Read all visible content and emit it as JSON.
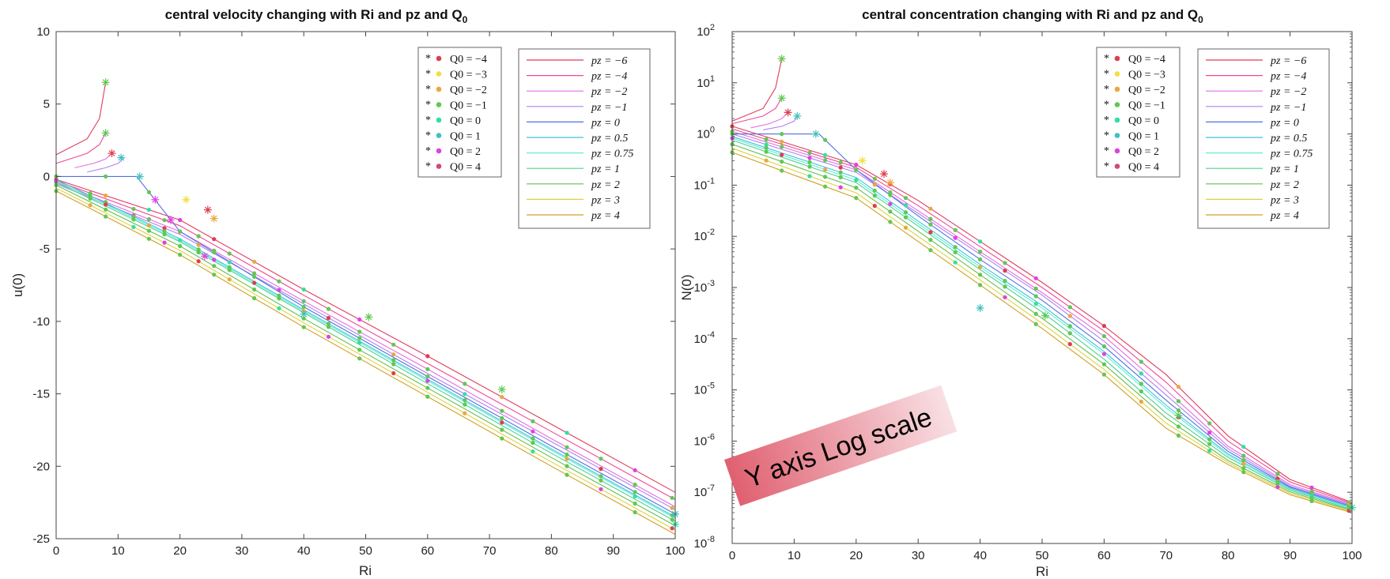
{
  "colors": {
    "q_colors": [
      "#e03c4e",
      "#f0e040",
      "#e8a840",
      "#60c850",
      "#30e0a0",
      "#40c0c0",
      "#e040e0",
      "#d04880"
    ],
    "p_colors": [
      "#e03c5a",
      "#f04896",
      "#e070e0",
      "#b080f0",
      "#5070e0",
      "#40c0e0",
      "#60f0d0",
      "#50d090",
      "#60c050",
      "#e0d040",
      "#d0a020"
    ],
    "marker_color": "#60c850",
    "annotation_gradient": [
      "#e06070",
      "#f8e0e4"
    ]
  },
  "annotation": {
    "text": "Y axis Log scale"
  },
  "chart_data": [
    {
      "type": "line",
      "title": "central velocity changing with Ri and pz and Q",
      "title_sub": "0",
      "xlabel": "Ri",
      "ylabel": "u(0)",
      "xlim": [
        0,
        100
      ],
      "ylim": [
        -25,
        10
      ],
      "yscale": "linear",
      "xticks": [
        0,
        10,
        20,
        30,
        40,
        50,
        60,
        70,
        80,
        90,
        100
      ],
      "yticks": [
        10,
        5,
        0,
        -5,
        -10,
        -15,
        -20,
        -25
      ],
      "grid": false,
      "legend_q": [
        "Q0 = −4",
        "Q0 = −3",
        "Q0 = −2",
        "Q0 = −1",
        "Q0 = 0",
        "Q0 = 1",
        "Q0 = 2",
        "Q0 = 4"
      ],
      "legend_p": [
        "pz = −6",
        "pz = −4",
        "pz = −2",
        "pz = −1",
        "pz = 0",
        "pz = 0.5",
        "pz = 0.75",
        "pz = 1",
        "pz = 2",
        "pz = 3",
        "pz = 4"
      ],
      "legend_placement": "top-right",
      "series": [
        {
          "name": "pz = −6",
          "x": [
            0,
            20,
            40,
            60,
            80,
            100
          ],
          "y": [
            -0.2,
            -3.0,
            -7.8,
            -12.4,
            -17.1,
            -21.8
          ]
        },
        {
          "name": "pz = −4",
          "x": [
            0,
            20,
            40,
            60,
            80,
            100
          ],
          "y": [
            -0.3,
            -3.4,
            -8.2,
            -12.9,
            -17.6,
            -22.3
          ]
        },
        {
          "name": "pz = −2",
          "x": [
            0,
            20,
            40,
            60,
            80,
            100
          ],
          "y": [
            -0.4,
            -3.8,
            -8.6,
            -13.3,
            -18.1,
            -22.8
          ]
        },
        {
          "name": "pz = −1",
          "x": [
            0,
            20,
            40,
            60,
            80,
            100
          ],
          "y": [
            -0.5,
            -4.0,
            -8.8,
            -13.6,
            -18.3,
            -23.0
          ]
        },
        {
          "name": "pz = 0",
          "x": [
            0,
            13,
            20,
            40,
            60,
            80,
            100
          ],
          "y": [
            0.0,
            0.0,
            -3.8,
            -9.0,
            -13.8,
            -18.6,
            -23.3
          ]
        },
        {
          "name": "pz = 0.5",
          "x": [
            0,
            20,
            40,
            60,
            80,
            100
          ],
          "y": [
            -0.2,
            -4.3,
            -9.2,
            -14.0,
            -18.8,
            -23.5
          ]
        },
        {
          "name": "pz = 0.75",
          "x": [
            0,
            20,
            40,
            60,
            80,
            100
          ],
          "y": [
            -0.3,
            -4.4,
            -9.3,
            -14.1,
            -18.9,
            -23.6
          ]
        },
        {
          "name": "pz = 1",
          "x": [
            0,
            20,
            40,
            60,
            80,
            100
          ],
          "y": [
            -0.4,
            -4.5,
            -9.4,
            -14.3,
            -19.1,
            -23.8
          ]
        },
        {
          "name": "pz = 2",
          "x": [
            0,
            20,
            40,
            60,
            80,
            100
          ],
          "y": [
            -0.6,
            -4.8,
            -9.8,
            -14.6,
            -19.4,
            -24.1
          ]
        },
        {
          "name": "pz = 3",
          "x": [
            0,
            20,
            40,
            60,
            80,
            100
          ],
          "y": [
            -0.8,
            -5.1,
            -10.1,
            -14.9,
            -19.7,
            -24.4
          ]
        },
        {
          "name": "pz = 4",
          "x": [
            0,
            20,
            40,
            60,
            80,
            100
          ],
          "y": [
            -1.0,
            -5.4,
            -10.4,
            -15.2,
            -20.0,
            -24.7
          ]
        }
      ],
      "branches": [
        {
          "x": [
            0,
            5,
            7,
            8
          ],
          "y": [
            1.5,
            2.6,
            4.0,
            6.5
          ]
        },
        {
          "x": [
            0,
            5,
            7,
            8
          ],
          "y": [
            0.9,
            1.6,
            2.2,
            3.0
          ]
        },
        {
          "x": [
            3,
            6,
            8,
            9
          ],
          "y": [
            0.6,
            0.9,
            1.2,
            1.6
          ]
        },
        {
          "x": [
            5,
            8,
            10,
            11
          ],
          "y": [
            0.3,
            0.6,
            0.9,
            1.3
          ]
        }
      ],
      "tips": [
        {
          "x": 8,
          "y": 6.5,
          "color": "#60c850"
        },
        {
          "x": 8,
          "y": 3.0,
          "color": "#60c850"
        },
        {
          "x": 9,
          "y": 1.6,
          "color": "#e03c4e"
        },
        {
          "x": 10.5,
          "y": 1.3,
          "color": "#40c0c0"
        },
        {
          "x": 13.5,
          "y": 0.0,
          "color": "#40c0c0"
        },
        {
          "x": 21,
          "y": -1.6,
          "color": "#f0e040"
        },
        {
          "x": 24.5,
          "y": -2.3,
          "color": "#e03c4e"
        },
        {
          "x": 25.5,
          "y": -2.9,
          "color": "#e8a840"
        },
        {
          "x": 16,
          "y": -1.6,
          "color": "#e040e0"
        },
        {
          "x": 18.5,
          "y": -3.0,
          "color": "#e040e0"
        },
        {
          "x": 24,
          "y": -5.5,
          "color": "#e040e0"
        },
        {
          "x": 40,
          "y": -9.5,
          "color": "#40c0c0"
        },
        {
          "x": 50.5,
          "y": -9.7,
          "color": "#60c850"
        },
        {
          "x": 72,
          "y": -14.7,
          "color": "#60c850"
        },
        {
          "x": 100,
          "y": -23.3,
          "color": "#40c0c0"
        },
        {
          "x": 100,
          "y": -24.0,
          "color": "#30e0a0"
        }
      ],
      "marker_columns": [
        0,
        5.5,
        8,
        12.5,
        15,
        17.5,
        20,
        23,
        25.5,
        28,
        32,
        36,
        40,
        44,
        49,
        54.5,
        60,
        66,
        72,
        77,
        82.5,
        88,
        93.5,
        99.5
      ]
    },
    {
      "type": "line",
      "title": "central concentration changing with Ri and pz and Q",
      "title_sub": "0",
      "xlabel": "Ri",
      "ylabel": "N(0)",
      "xlim": [
        0,
        100
      ],
      "ylim": [
        -8,
        2
      ],
      "yscale": "log",
      "xticks": [
        0,
        10,
        20,
        30,
        40,
        50,
        60,
        70,
        80,
        90,
        100
      ],
      "yticks": [
        2,
        1,
        0,
        -1,
        -2,
        -3,
        -4,
        -5,
        -6,
        -7,
        -8
      ],
      "ytick_labels": [
        "10",
        "10",
        "10",
        "10",
        "10",
        "10",
        "10",
        "10",
        "10",
        "10",
        "10"
      ],
      "ytick_exponents": [
        "2",
        "1",
        "0",
        "-1",
        "-2",
        "-3",
        "-4",
        "-5",
        "-6",
        "-7",
        "-8"
      ],
      "grid": false,
      "legend_q": [
        "Q0 = −4",
        "Q0 = −3",
        "Q0 = −2",
        "Q0 = −1",
        "Q0 = 0",
        "Q0 = 1",
        "Q0 = 2",
        "Q0 = 4"
      ],
      "legend_p": [
        "pz = −6",
        "pz = −4",
        "pz = −2",
        "pz = −1",
        "pz = 0",
        "pz = 0.5",
        "pz = 0.75",
        "pz = 1",
        "pz = 2",
        "pz = 3",
        "pz = 4"
      ],
      "legend_placement": "top-right",
      "series": [
        {
          "name": "pz = −6",
          "x": [
            0,
            20,
            30,
            40,
            50,
            60,
            70,
            80,
            90,
            100
          ],
          "y": [
            0.15,
            -0.6,
            -1.3,
            -2.1,
            -2.9,
            -3.75,
            -4.7,
            -5.9,
            -6.75,
            -7.2
          ]
        },
        {
          "name": "pz = −4",
          "x": [
            0,
            20,
            30,
            40,
            50,
            60,
            70,
            80,
            90,
            100
          ],
          "y": [
            0.1,
            -0.65,
            -1.4,
            -2.2,
            -3.0,
            -3.85,
            -4.85,
            -6.0,
            -6.8,
            -7.22
          ]
        },
        {
          "name": "pz = −2",
          "x": [
            0,
            20,
            30,
            40,
            50,
            60,
            70,
            80,
            90,
            100
          ],
          "y": [
            0.05,
            -0.7,
            -1.5,
            -2.3,
            -3.1,
            -3.95,
            -5.0,
            -6.1,
            -6.85,
            -7.24
          ]
        },
        {
          "name": "pz = −1",
          "x": [
            0,
            20,
            30,
            40,
            50,
            60,
            70,
            80,
            90,
            100
          ],
          "y": [
            0.0,
            -0.75,
            -1.55,
            -2.35,
            -3.15,
            -4.05,
            -5.1,
            -6.15,
            -6.88,
            -7.26
          ]
        },
        {
          "name": "pz = 0",
          "x": [
            0,
            14,
            20,
            30,
            40,
            50,
            60,
            70,
            80,
            90,
            100
          ],
          "y": [
            0.0,
            0.0,
            -0.7,
            -1.6,
            -2.45,
            -3.25,
            -4.15,
            -5.2,
            -6.2,
            -6.9,
            -7.28
          ]
        },
        {
          "name": "pz = 0.5",
          "x": [
            0,
            20,
            30,
            40,
            50,
            60,
            70,
            80,
            90,
            100
          ],
          "y": [
            -0.05,
            -0.85,
            -1.7,
            -2.55,
            -3.35,
            -4.25,
            -5.3,
            -6.25,
            -6.92,
            -7.3
          ]
        },
        {
          "name": "pz = 0.75",
          "x": [
            0,
            20,
            30,
            40,
            50,
            60,
            70,
            80,
            90,
            100
          ],
          "y": [
            -0.08,
            -0.9,
            -1.75,
            -2.6,
            -3.4,
            -4.3,
            -5.35,
            -6.28,
            -6.94,
            -7.32
          ]
        },
        {
          "name": "pz = 1",
          "x": [
            0,
            20,
            30,
            40,
            50,
            60,
            70,
            80,
            90,
            100
          ],
          "y": [
            -0.12,
            -0.95,
            -1.8,
            -2.65,
            -3.48,
            -4.4,
            -5.45,
            -6.32,
            -6.96,
            -7.34
          ]
        },
        {
          "name": "pz = 2",
          "x": [
            0,
            20,
            30,
            40,
            50,
            60,
            70,
            80,
            90,
            100
          ],
          "y": [
            -0.2,
            -1.05,
            -1.9,
            -2.75,
            -3.6,
            -4.5,
            -5.55,
            -6.38,
            -6.99,
            -7.36
          ]
        },
        {
          "name": "pz = 3",
          "x": [
            0,
            20,
            30,
            40,
            50,
            60,
            70,
            80,
            90,
            100
          ],
          "y": [
            -0.28,
            -1.15,
            -2.0,
            -2.85,
            -3.7,
            -4.6,
            -5.65,
            -6.42,
            -7.02,
            -7.38
          ]
        },
        {
          "name": "pz = 4",
          "x": [
            0,
            20,
            30,
            40,
            50,
            60,
            70,
            80,
            90,
            100
          ],
          "y": [
            -0.36,
            -1.25,
            -2.1,
            -2.95,
            -3.8,
            -4.7,
            -5.75,
            -6.46,
            -7.05,
            -7.4
          ]
        }
      ],
      "branches": [
        {
          "x": [
            0,
            5,
            7,
            8
          ],
          "y": [
            0.25,
            0.5,
            0.9,
            1.47
          ]
        },
        {
          "x": [
            0,
            5,
            7,
            8
          ],
          "y": [
            0.2,
            0.35,
            0.5,
            0.7
          ]
        },
        {
          "x": [
            3,
            6,
            8,
            9
          ],
          "y": [
            0.12,
            0.2,
            0.3,
            0.42
          ]
        },
        {
          "x": [
            5,
            8,
            10,
            10.5
          ],
          "y": [
            0.08,
            0.15,
            0.25,
            0.35
          ]
        }
      ],
      "tips": [
        {
          "x": 8,
          "y": 1.47,
          "color": "#60c850"
        },
        {
          "x": 8,
          "y": 0.7,
          "color": "#60c850"
        },
        {
          "x": 9,
          "y": 0.42,
          "color": "#e03c4e"
        },
        {
          "x": 10.5,
          "y": 0.35,
          "color": "#40c0c0"
        },
        {
          "x": 13.5,
          "y": 0.0,
          "color": "#40c0c0"
        },
        {
          "x": 21,
          "y": -0.52,
          "color": "#f0e040"
        },
        {
          "x": 24.5,
          "y": -0.78,
          "color": "#e03c4e"
        },
        {
          "x": 25.5,
          "y": -0.95,
          "color": "#e8a840"
        },
        {
          "x": 40,
          "y": -3.4,
          "color": "#40c0c0"
        },
        {
          "x": 50.5,
          "y": -3.55,
          "color": "#60c850"
        },
        {
          "x": 72,
          "y": -5.5,
          "color": "#60c850"
        },
        {
          "x": 100,
          "y": -7.3,
          "color": "#30e0a0"
        }
      ],
      "marker_columns": [
        0,
        5.5,
        8,
        12.5,
        15,
        17.5,
        20,
        23,
        25.5,
        28,
        32,
        36,
        40,
        44,
        49,
        54.5,
        60,
        66,
        72,
        77,
        82.5,
        88,
        93.5,
        99.5
      ]
    }
  ]
}
